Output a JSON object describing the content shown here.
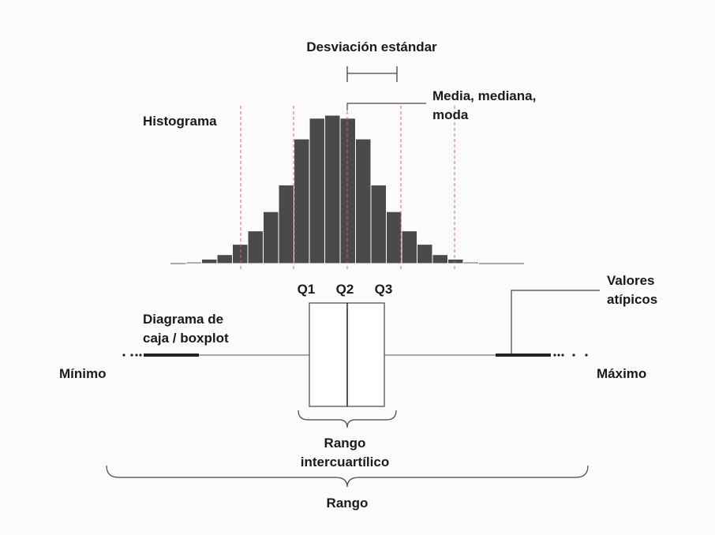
{
  "labels": {
    "std_dev": "Desviación estándar",
    "mean_median_mode": [
      "Media, mediana,",
      "moda"
    ],
    "histogram": "Histograma",
    "q1": "Q1",
    "q2": "Q2",
    "q3": "Q3",
    "outliers": [
      "Valores",
      "atípicos"
    ],
    "boxplot": [
      "Diagrama de",
      "caja / boxplot"
    ],
    "minimum": "Mínimo",
    "maximum": "Máximo",
    "iqr": [
      "Rango",
      "intercuartílico"
    ],
    "range": "Rango"
  },
  "colors": {
    "bar_fill": "#4a4a4a",
    "bar_stroke": "#ffffff",
    "guide_line": "#e06060",
    "line": "#444444",
    "text": "#1a1a1a"
  },
  "histogram": {
    "relative_heights": [
      0.01,
      0.03,
      0.06,
      0.13,
      0.22,
      0.35,
      0.53,
      0.84,
      0.98,
      1.0,
      0.98,
      0.84,
      0.53,
      0.35,
      0.22,
      0.13,
      0.06,
      0.03,
      0.01
    ]
  }
}
